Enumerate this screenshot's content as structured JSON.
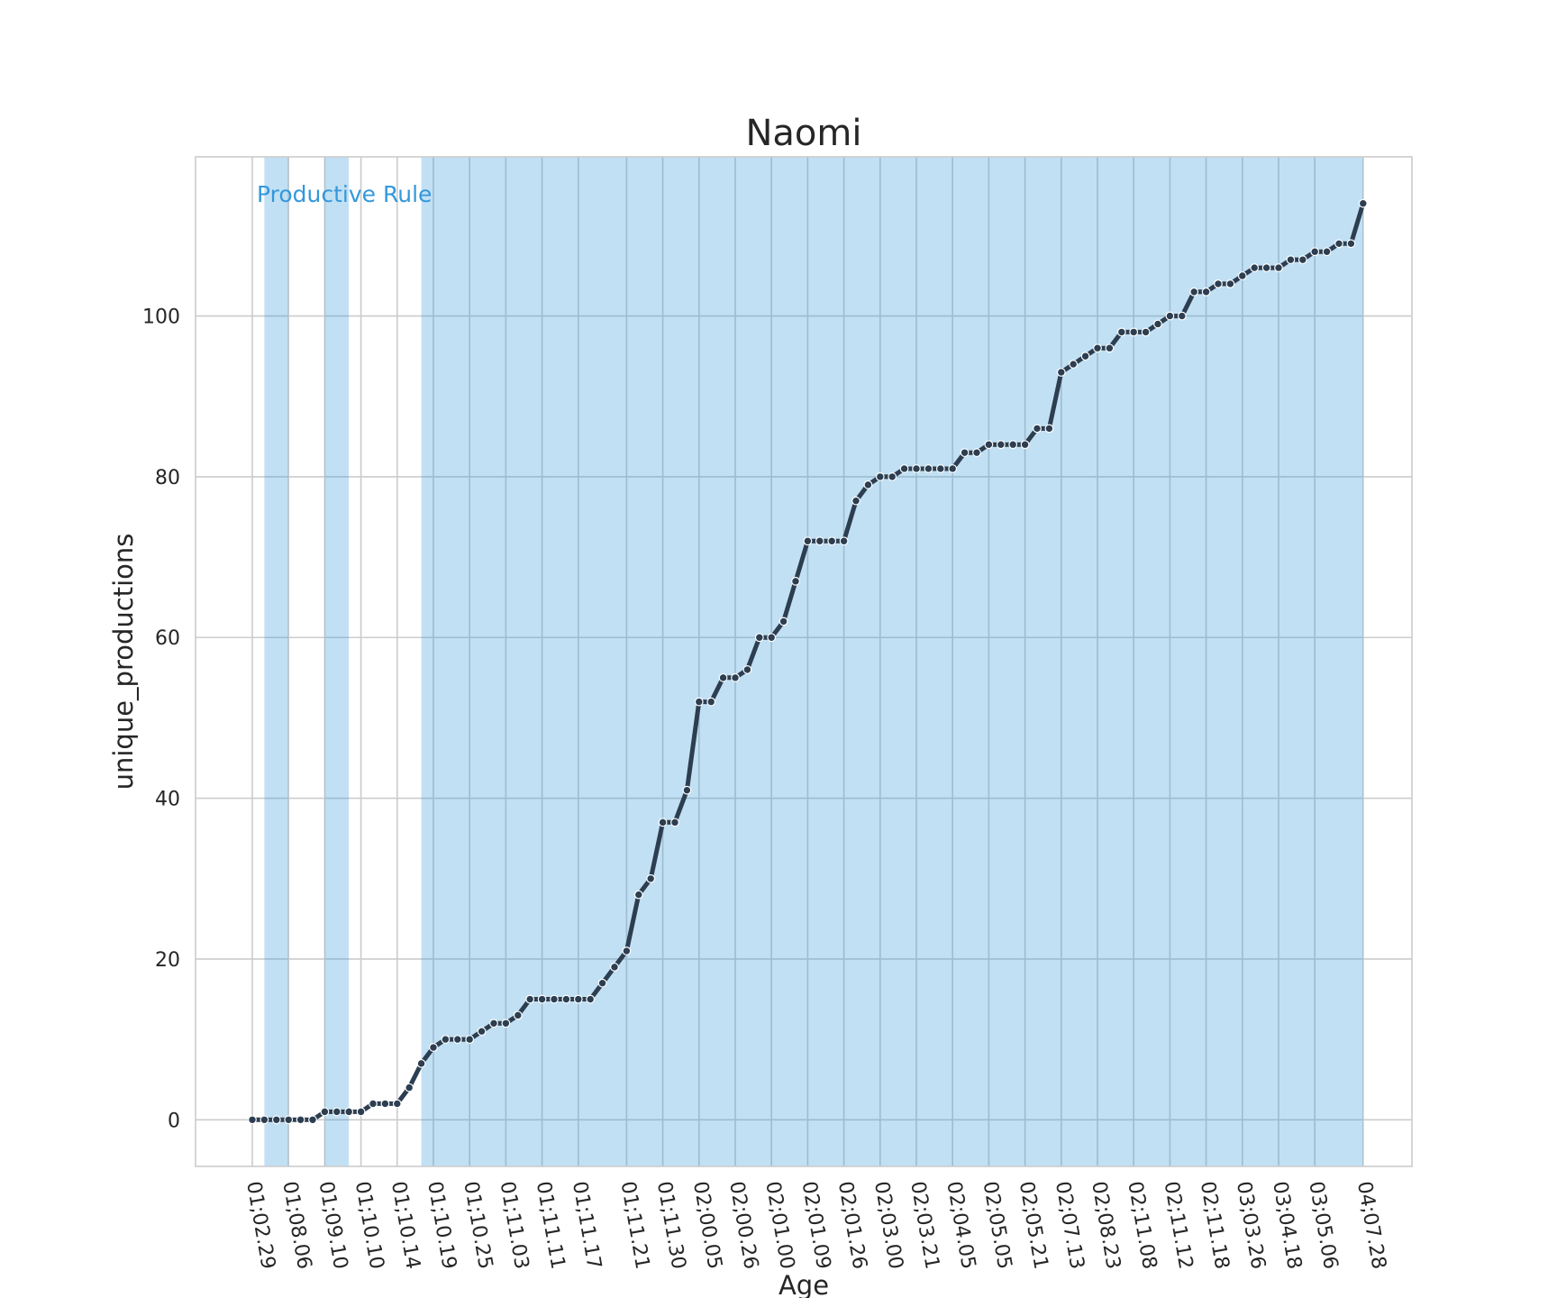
{
  "chart_data": {
    "type": "line",
    "title": "Naomi",
    "xlabel": "Age",
    "ylabel": "unique_productions",
    "ylim": [
      -5.8,
      119.8
    ],
    "yticks": [
      0,
      20,
      40,
      60,
      80,
      100
    ],
    "grid": true,
    "x_tick_labels": [
      "01;02.29",
      "01;08.06",
      "01;09.10",
      "01;10.10",
      "01;10.14",
      "01;10.19",
      "01;10.25",
      "01;11.03",
      "01;11.11",
      "01;11.17",
      "01;11.21",
      "01;11.30",
      "02;00.05",
      "02;00.26",
      "02;01.00",
      "02;01.09",
      "02;01.26",
      "02;03.00",
      "02;03.21",
      "02;04.05",
      "02;05.05",
      "02;05.21",
      "02;07.13",
      "02;08.23",
      "02;11.08",
      "02;11.12",
      "02;11.18",
      "03;03.26",
      "03;04.18",
      "03;05.06",
      "04;07.28"
    ],
    "series": [
      {
        "values": [
          0,
          0,
          0,
          0,
          0,
          0,
          1,
          1,
          1,
          1,
          2,
          2,
          2,
          4,
          7,
          9,
          10,
          10,
          10,
          11,
          12,
          12,
          13,
          15,
          15,
          15,
          15,
          15,
          15,
          17,
          19,
          21,
          28,
          30,
          37,
          37,
          41,
          52,
          52,
          55,
          55,
          56,
          60,
          60,
          62,
          67,
          72,
          72,
          72,
          72,
          77,
          79,
          80,
          80,
          81,
          81,
          81,
          81,
          81,
          83,
          83,
          84,
          84,
          84,
          84,
          86,
          86,
          93,
          94,
          95,
          96,
          96,
          98,
          98,
          98,
          99,
          100,
          100,
          103,
          103,
          104,
          104,
          105,
          106,
          106,
          106,
          107,
          107,
          108,
          108,
          109,
          109,
          114
        ],
        "color": "#2c3e50"
      }
    ],
    "shaded_regions": {
      "color": "#3498db",
      "label": "Productive Rule",
      "ranges": [
        [
          1,
          3
        ],
        [
          6,
          8
        ],
        [
          14,
          92
        ]
      ]
    }
  }
}
